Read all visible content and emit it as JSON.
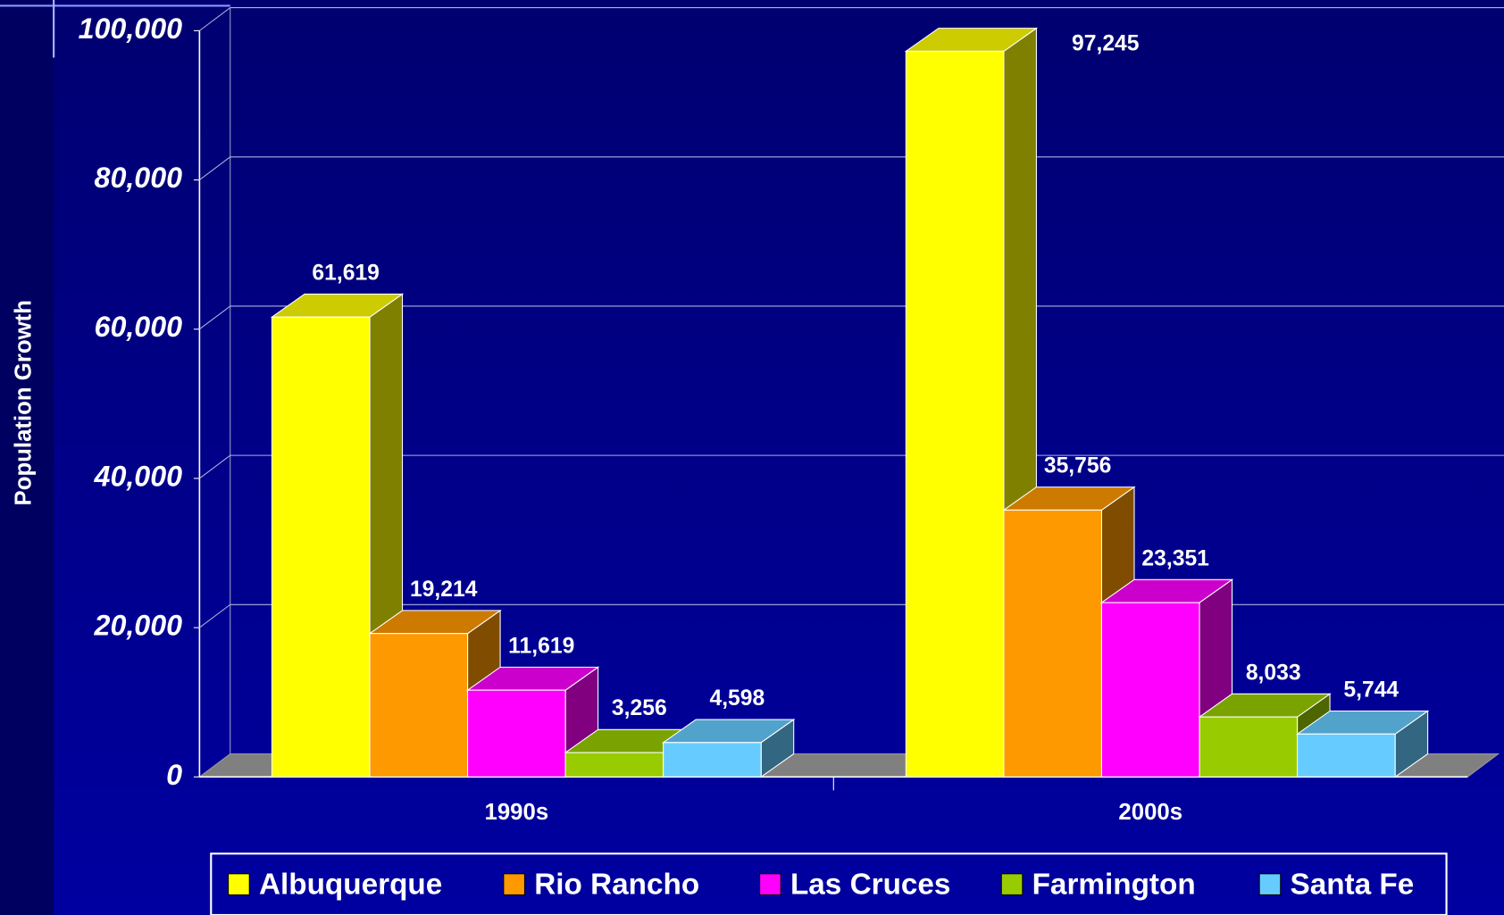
{
  "chart_data": {
    "type": "bar3d",
    "y_label": "Population Growth",
    "categories": [
      "1990s",
      "2000s"
    ],
    "series": [
      {
        "name": "Albuquerque",
        "color": "#ffff00",
        "values": [
          61619,
          97245
        ],
        "value_labels": [
          "61,619",
          "97,245"
        ]
      },
      {
        "name": "Rio Rancho",
        "color": "#ff9900",
        "values": [
          19214,
          35756
        ],
        "value_labels": [
          "19,214",
          "35,756"
        ]
      },
      {
        "name": "Las Cruces",
        "color": "#ff00ff",
        "values": [
          11619,
          23351
        ],
        "value_labels": [
          "11,619",
          "23,351"
        ]
      },
      {
        "name": "Farmington",
        "color": "#99cc00",
        "values": [
          3256,
          8033
        ],
        "value_labels": [
          "3,256",
          "8,033"
        ]
      },
      {
        "name": "Santa Fe",
        "color": "#66ccff",
        "values": [
          4598,
          5744
        ],
        "value_labels": [
          "4,598",
          "5,744"
        ]
      }
    ],
    "ylim": [
      0,
      100000
    ],
    "yticks": [
      0,
      {
        "value": 20000,
        "label": "20,000"
      },
      {
        "value": 40000,
        "label": "40,000"
      },
      {
        "value": 60000,
        "label": "60,000"
      },
      {
        "value": 80000,
        "label": "80,000"
      },
      {
        "value": 100000,
        "label": "100,000"
      }
    ],
    "grid": true,
    "legend": "bottom"
  }
}
